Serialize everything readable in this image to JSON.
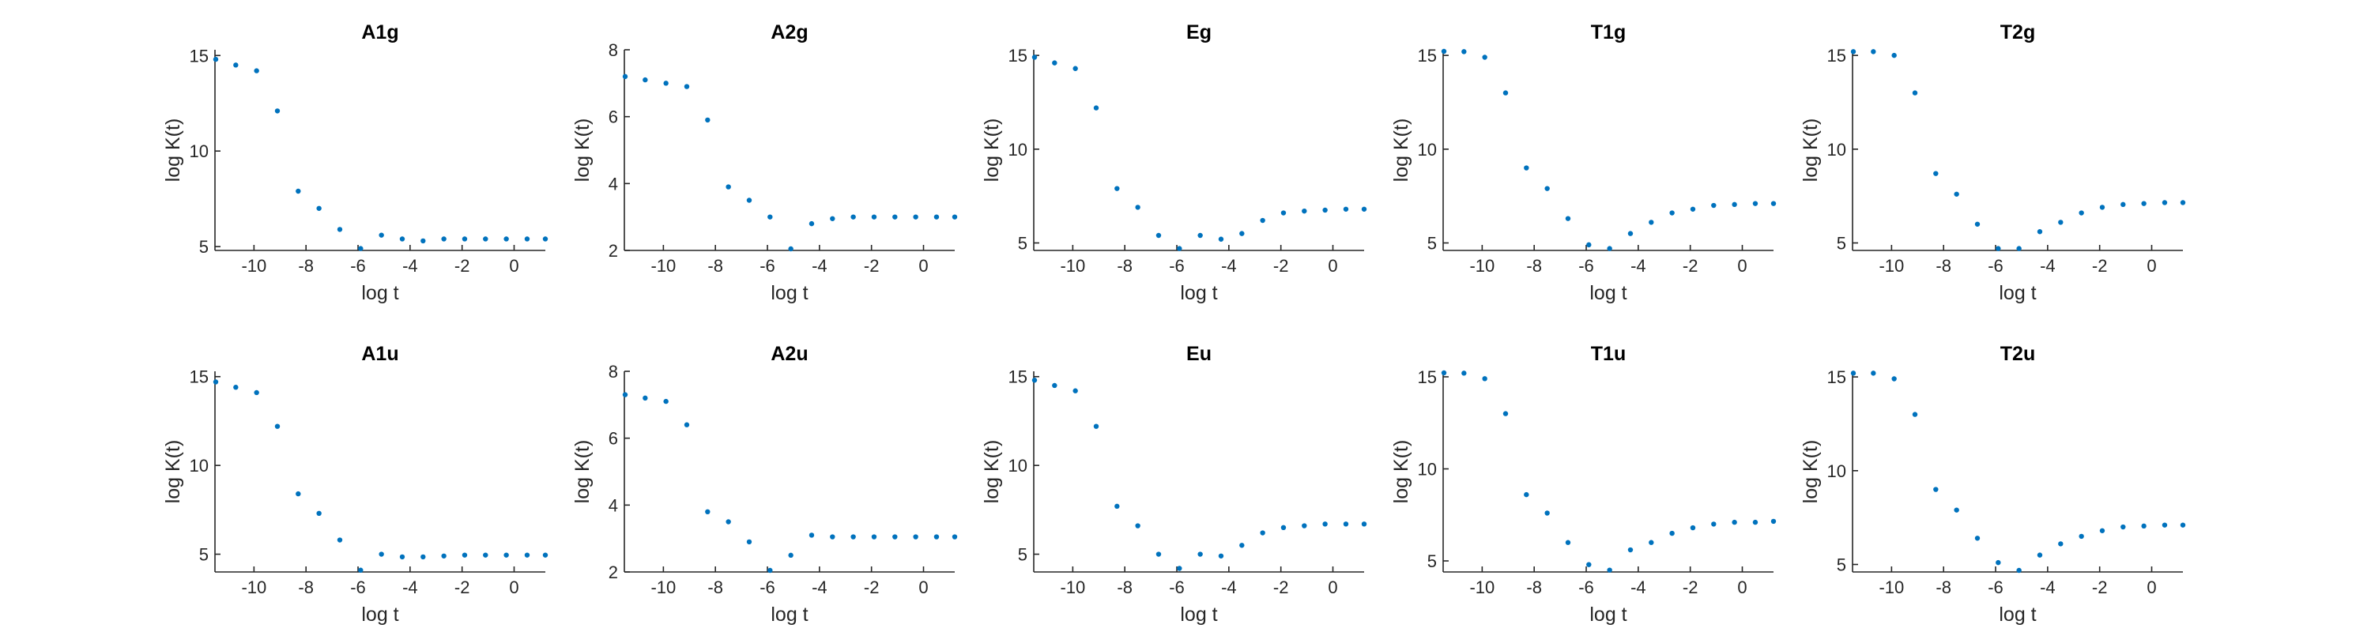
{
  "marker_color": "#0072bd",
  "chart_data": [
    {
      "type": "scatter",
      "title": "A1g",
      "xlabel": "log t",
      "ylabel": "log K(t)",
      "xlim": [
        -11.5,
        1.2
      ],
      "ylim": [
        4.8,
        15.3
      ],
      "xticks": [
        -10,
        -8,
        -6,
        -4,
        -2,
        0
      ],
      "yticks": [
        5,
        10,
        15
      ],
      "x": [
        -11.5,
        -10.7,
        -9.9,
        -9.1,
        -8.3,
        -7.5,
        -6.7,
        -5.9,
        -5.1,
        -4.3,
        -3.5,
        -2.7,
        -1.9,
        -1.1,
        -0.3,
        0.5,
        1.2
      ],
      "y": [
        14.8,
        14.5,
        14.2,
        12.1,
        7.9,
        7.0,
        5.9,
        4.9,
        5.6,
        5.4,
        5.3,
        5.4,
        5.4,
        5.4,
        5.4,
        5.4,
        5.4
      ]
    },
    {
      "type": "scatter",
      "title": "A2g",
      "xlabel": "log t",
      "ylabel": "log K(t)",
      "xlim": [
        -11.5,
        1.2
      ],
      "ylim": [
        2.0,
        8.0
      ],
      "xticks": [
        -10,
        -8,
        -6,
        -4,
        -2,
        0
      ],
      "yticks": [
        2,
        4,
        6,
        8
      ],
      "x": [
        -11.5,
        -10.7,
        -9.9,
        -9.1,
        -8.3,
        -7.5,
        -6.7,
        -5.9,
        -5.1,
        -4.3,
        -3.5,
        -2.7,
        -1.9,
        -1.1,
        -0.3,
        0.5,
        1.2
      ],
      "y": [
        7.2,
        7.1,
        7.0,
        6.9,
        5.9,
        3.9,
        3.5,
        3.0,
        2.0,
        2.8,
        2.95,
        3.0,
        3.0,
        3.0,
        3.0,
        3.0,
        3.0
      ]
    },
    {
      "type": "scatter",
      "title": "Eg",
      "xlabel": "log t",
      "ylabel": "log K(t)",
      "xlim": [
        -11.5,
        1.2
      ],
      "ylim": [
        4.6,
        15.3
      ],
      "xticks": [
        -10,
        -8,
        -6,
        -4,
        -2,
        0
      ],
      "yticks": [
        5,
        10,
        15
      ],
      "x": [
        -11.5,
        -10.7,
        -9.9,
        -9.1,
        -8.3,
        -7.5,
        -6.7,
        -5.9,
        -5.1,
        -4.3,
        -3.5,
        -2.7,
        -1.9,
        -1.1,
        -0.3,
        0.5,
        1.2
      ],
      "y": [
        14.9,
        14.6,
        14.3,
        12.2,
        7.9,
        6.9,
        5.4,
        4.7,
        5.4,
        5.2,
        5.5,
        6.2,
        6.6,
        6.7,
        6.75,
        6.8,
        6.8
      ]
    },
    {
      "type": "scatter",
      "title": "T1g",
      "xlabel": "log t",
      "ylabel": "log K(t)",
      "xlim": [
        -11.5,
        1.2
      ],
      "ylim": [
        4.6,
        15.3
      ],
      "xticks": [
        -10,
        -8,
        -6,
        -4,
        -2,
        0
      ],
      "yticks": [
        5,
        10,
        15
      ],
      "x": [
        -11.5,
        -10.7,
        -9.9,
        -9.1,
        -8.3,
        -7.5,
        -6.7,
        -5.9,
        -5.1,
        -4.3,
        -3.5,
        -2.7,
        -1.9,
        -1.1,
        -0.3,
        0.5,
        1.2
      ],
      "y": [
        15.3,
        15.2,
        14.9,
        13.0,
        9.0,
        7.9,
        6.3,
        4.9,
        4.7,
        5.5,
        6.1,
        6.6,
        6.8,
        7.0,
        7.05,
        7.1,
        7.1
      ]
    },
    {
      "type": "scatter",
      "title": "T2g",
      "xlabel": "log t",
      "ylabel": "log K(t)",
      "xlim": [
        -11.5,
        1.2
      ],
      "ylim": [
        4.6,
        15.3
      ],
      "xticks": [
        -10,
        -8,
        -6,
        -4,
        -2,
        0
      ],
      "yticks": [
        5,
        10,
        15
      ],
      "x": [
        -11.5,
        -10.7,
        -9.9,
        -9.1,
        -8.3,
        -7.5,
        -6.7,
        -5.9,
        -5.1,
        -4.3,
        -3.5,
        -2.7,
        -1.9,
        -1.1,
        -0.3,
        0.5,
        1.2
      ],
      "y": [
        15.2,
        15.2,
        15.0,
        13.0,
        8.7,
        7.6,
        6.0,
        4.7,
        4.7,
        5.6,
        6.1,
        6.6,
        6.9,
        7.05,
        7.1,
        7.15,
        7.15
      ]
    },
    {
      "type": "scatter",
      "title": "A1u",
      "xlabel": "log t",
      "ylabel": "log K(t)",
      "xlim": [
        -11.5,
        1.2
      ],
      "ylim": [
        4.0,
        15.3
      ],
      "xticks": [
        -10,
        -8,
        -6,
        -4,
        -2,
        0
      ],
      "yticks": [
        5,
        10,
        15
      ],
      "x": [
        -11.5,
        -10.7,
        -9.9,
        -9.1,
        -8.3,
        -7.5,
        -6.7,
        -5.9,
        -5.1,
        -4.3,
        -3.5,
        -2.7,
        -1.9,
        -1.1,
        -0.3,
        0.5,
        1.2
      ],
      "y": [
        14.7,
        14.4,
        14.1,
        12.2,
        8.4,
        7.3,
        5.8,
        4.1,
        5.0,
        4.85,
        4.85,
        4.9,
        4.95,
        4.95,
        4.95,
        4.95,
        4.95
      ]
    },
    {
      "type": "scatter",
      "title": "A2u",
      "xlabel": "log t",
      "ylabel": "log K(t)",
      "xlim": [
        -11.5,
        1.2
      ],
      "ylim": [
        2.0,
        8.0
      ],
      "xticks": [
        -10,
        -8,
        -6,
        -4,
        -2,
        0
      ],
      "yticks": [
        2,
        4,
        6,
        8
      ],
      "x": [
        -11.5,
        -10.7,
        -9.9,
        -9.1,
        -8.3,
        -7.5,
        -6.7,
        -5.9,
        -5.1,
        -4.3,
        -3.5,
        -2.7,
        -1.9,
        -1.1,
        -0.3,
        0.5,
        1.2
      ],
      "y": [
        7.3,
        7.2,
        7.1,
        6.4,
        3.8,
        3.5,
        2.9,
        2.0,
        2.5,
        3.1,
        3.05,
        3.05,
        3.05,
        3.05,
        3.05,
        3.05,
        3.05
      ]
    },
    {
      "type": "scatter",
      "title": "Eu",
      "xlabel": "log t",
      "ylabel": "log K(t)",
      "xlim": [
        -11.5,
        1.2
      ],
      "ylim": [
        4.0,
        15.3
      ],
      "xticks": [
        -10,
        -8,
        -6,
        -4,
        -2,
        0
      ],
      "yticks": [
        5,
        10,
        15
      ],
      "x": [
        -11.5,
        -10.7,
        -9.9,
        -9.1,
        -8.3,
        -7.5,
        -6.7,
        -5.9,
        -5.1,
        -4.3,
        -3.5,
        -2.7,
        -1.9,
        -1.1,
        -0.3,
        0.5,
        1.2
      ],
      "y": [
        14.8,
        14.5,
        14.2,
        12.2,
        7.7,
        6.6,
        5.0,
        4.2,
        5.0,
        4.9,
        5.5,
        6.2,
        6.5,
        6.6,
        6.7,
        6.7,
        6.7
      ]
    },
    {
      "type": "scatter",
      "title": "T1u",
      "xlabel": "log t",
      "ylabel": "log K(t)",
      "xlim": [
        -11.5,
        1.2
      ],
      "ylim": [
        4.4,
        15.3
      ],
      "xticks": [
        -10,
        -8,
        -6,
        -4,
        -2,
        0
      ],
      "yticks": [
        5,
        10,
        15
      ],
      "x": [
        -11.5,
        -10.7,
        -9.9,
        -9.1,
        -8.3,
        -7.5,
        -6.7,
        -5.9,
        -5.1,
        -4.3,
        -3.5,
        -2.7,
        -1.9,
        -1.1,
        -0.3,
        0.5,
        1.2
      ],
      "y": [
        15.3,
        15.2,
        14.9,
        13.0,
        8.6,
        7.6,
        6.0,
        4.8,
        4.5,
        5.6,
        6.0,
        6.5,
        6.8,
        7.0,
        7.1,
        7.1,
        7.15
      ]
    },
    {
      "type": "scatter",
      "title": "T2u",
      "xlabel": "log t",
      "ylabel": "log K(t)",
      "xlim": [
        -11.5,
        1.2
      ],
      "ylim": [
        4.6,
        15.3
      ],
      "xticks": [
        -10,
        -8,
        -6,
        -4,
        -2,
        0
      ],
      "yticks": [
        5,
        10,
        15
      ],
      "x": [
        -11.5,
        -10.7,
        -9.9,
        -9.1,
        -8.3,
        -7.5,
        -6.7,
        -5.9,
        -5.1,
        -4.3,
        -3.5,
        -2.7,
        -1.9,
        -1.1,
        -0.3,
        0.5,
        1.2
      ],
      "y": [
        15.2,
        15.2,
        14.9,
        13.0,
        9.0,
        7.9,
        6.4,
        5.1,
        4.6,
        5.5,
        6.1,
        6.5,
        6.8,
        7.0,
        7.05,
        7.1,
        7.1
      ]
    }
  ]
}
